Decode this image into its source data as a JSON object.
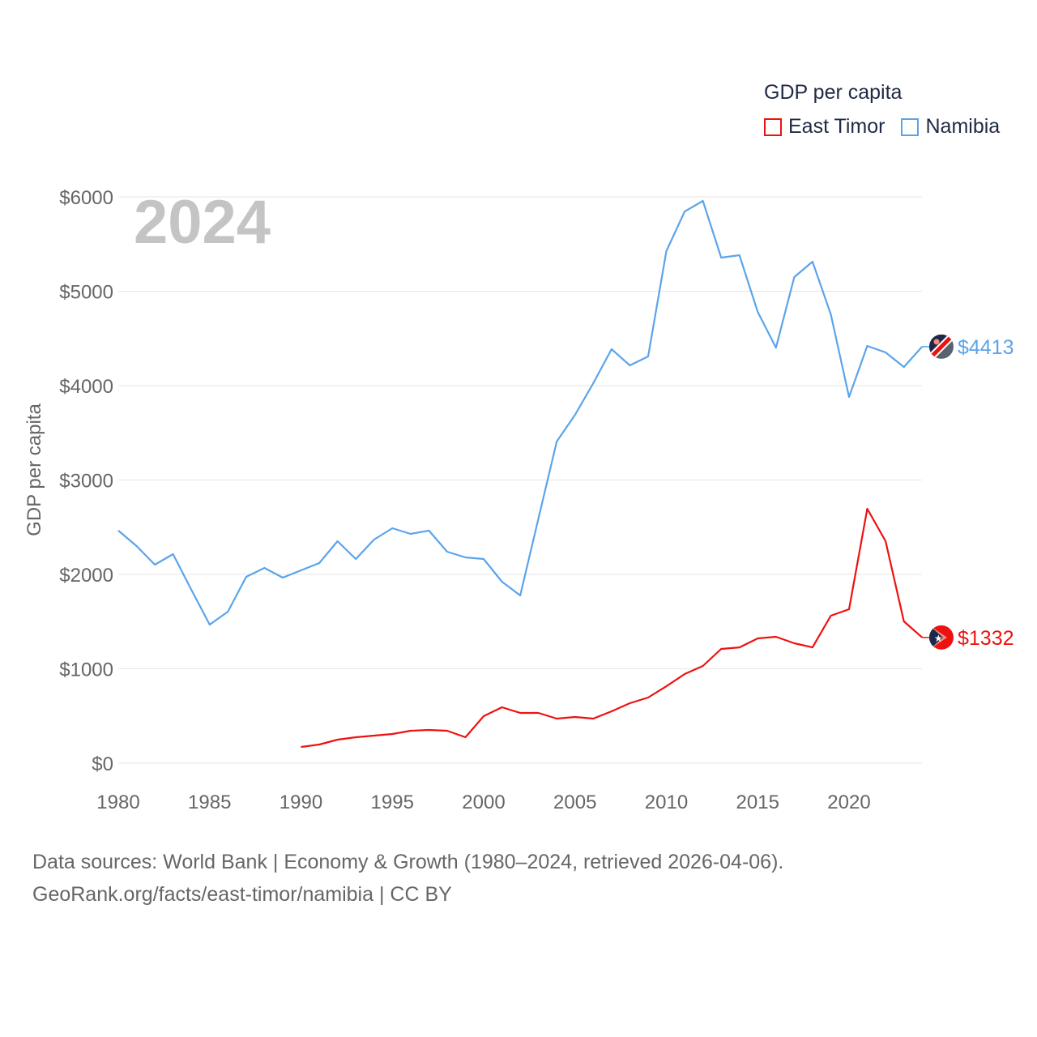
{
  "legend": {
    "title": "GDP per capita"
  },
  "footer": {
    "line1": "Data sources: World Bank | Economy & Growth (1980–2024, retrieved 2026-04-06).",
    "line2": "GeoRank.org/facts/east-timor/namibia | CC BY"
  },
  "chart_data": {
    "type": "line",
    "title": "GDP per capita",
    "year_label": "2024",
    "xlabel": "",
    "ylabel": "GDP per capita",
    "xlim": [
      1980,
      2024
    ],
    "ylim": [
      0,
      6000
    ],
    "x_ticks": [
      1980,
      1985,
      1990,
      1995,
      2000,
      2005,
      2010,
      2015,
      2020
    ],
    "y_ticks": [
      0,
      1000,
      2000,
      3000,
      4000,
      5000,
      6000
    ],
    "y_tick_labels": [
      "$0",
      "$1000",
      "$2000",
      "$3000",
      "$4000",
      "$5000",
      "$6000"
    ],
    "grid": true,
    "legend_position": "top-right",
    "series": [
      {
        "name": "East Timor",
        "color": "#ee1111",
        "end_label": "$1332",
        "start_year": 1990,
        "values": [
          172,
          197,
          249,
          275,
          292,
          309,
          343,
          352,
          343,
          275,
          498,
          592,
          532,
          532,
          472,
          489,
          472,
          549,
          635,
          695,
          815,
          944,
          1030,
          1210,
          1227,
          1322,
          1339,
          1270,
          1227,
          1562,
          1631,
          2695,
          2352,
          1502,
          1332
        ]
      },
      {
        "name": "Namibia",
        "color": "#5ba4ea",
        "end_label": "$4413",
        "start_year": 1980,
        "values": [
          2464,
          2300,
          2103,
          2215,
          1837,
          1468,
          1605,
          1974,
          2069,
          1966,
          2043,
          2120,
          2352,
          2163,
          2369,
          2489,
          2429,
          2464,
          2240,
          2180,
          2163,
          1923,
          1777,
          2592,
          3408,
          3691,
          4026,
          4386,
          4215,
          4309,
          5425,
          5845,
          5957,
          5356,
          5382,
          4781,
          4403,
          5150,
          5313,
          4755,
          3880,
          4421,
          4352,
          4197,
          4413
        ]
      }
    ]
  }
}
